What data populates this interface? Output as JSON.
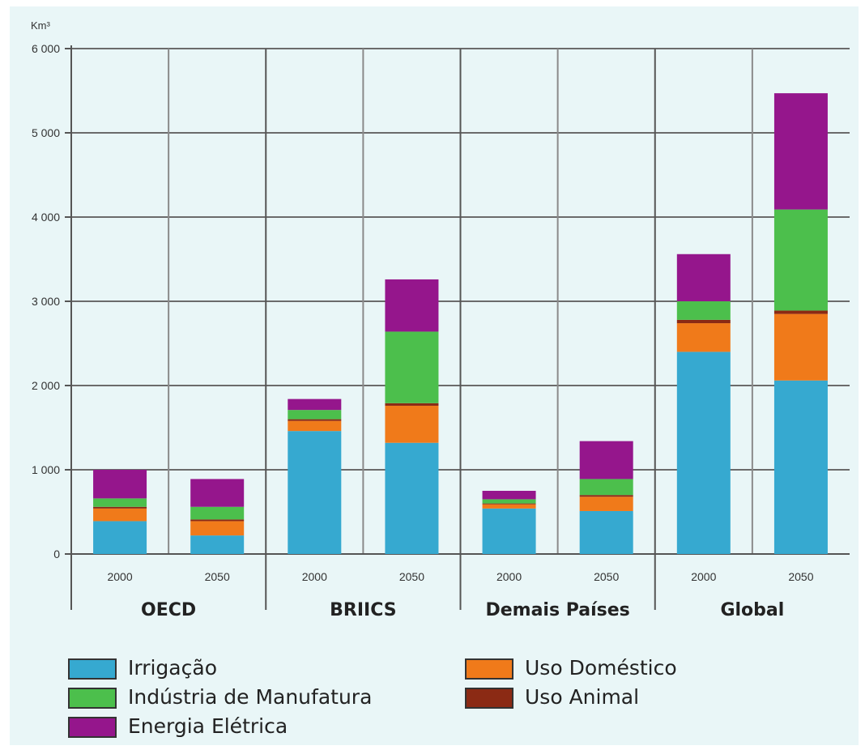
{
  "chart_data": {
    "type": "bar",
    "stacked": true,
    "ylabel": "Km³",
    "ylim": [
      0,
      6000
    ],
    "yticks": [
      "0",
      "1 000",
      "2 000",
      "3 000",
      "4 000",
      "5 000",
      "6 000"
    ],
    "grid": true,
    "groups": [
      "OECD",
      "BRIICS",
      "Demais Países",
      "Global"
    ],
    "categories": [
      "2000",
      "2050",
      "2000",
      "2050",
      "2000",
      "2050",
      "2000",
      "2050"
    ],
    "series": [
      {
        "name": "Irrigação",
        "color": "#36a9d0",
        "values": [
          390,
          220,
          1460,
          1320,
          540,
          510,
          2400,
          2060
        ]
      },
      {
        "name": "Uso Doméstico",
        "color": "#f07a1a",
        "values": [
          150,
          170,
          120,
          440,
          50,
          170,
          340,
          790
        ]
      },
      {
        "name": "Uso Animal",
        "color": "#8b2a14",
        "values": [
          20,
          20,
          20,
          30,
          10,
          20,
          40,
          40
        ]
      },
      {
        "name": "Indústria de Manufatura",
        "color": "#4cbf4c",
        "values": [
          100,
          150,
          110,
          850,
          50,
          190,
          220,
          1200
        ]
      },
      {
        "name": "Energia Elétrica",
        "color": "#95168c",
        "values": [
          340,
          330,
          130,
          620,
          100,
          450,
          560,
          1380
        ]
      }
    ],
    "legend": {
      "position": "bottom",
      "order": [
        "Irrigação",
        "Uso Doméstico",
        "Indústria de Manufatura",
        "Uso Animal",
        "Energia Elétrica"
      ]
    }
  }
}
